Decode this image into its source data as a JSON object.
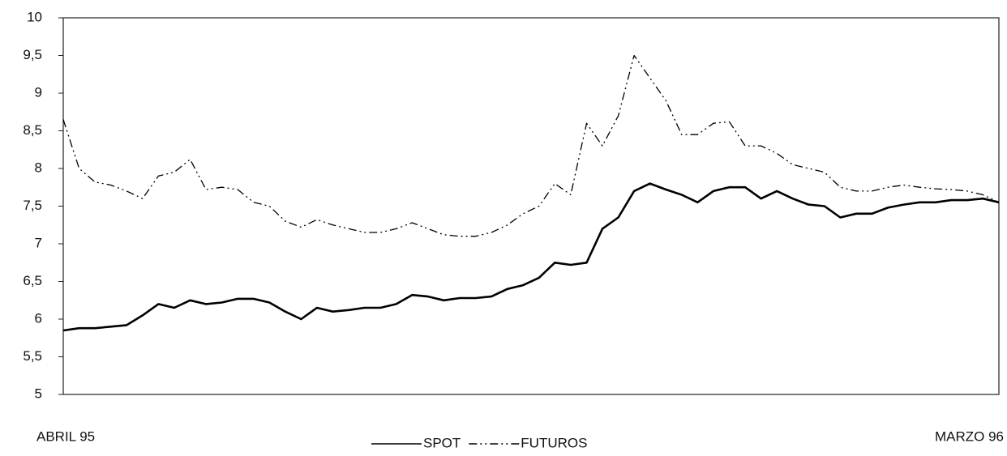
{
  "chart_data": {
    "type": "line",
    "categories": [
      "ABRIL 95",
      null,
      null,
      null,
      null,
      null,
      null,
      null,
      null,
      null,
      null,
      null,
      null,
      null,
      null,
      null,
      null,
      null,
      null,
      null,
      null,
      null,
      null,
      null,
      null,
      null,
      null,
      null,
      null,
      null,
      null,
      null,
      null,
      null,
      null,
      null,
      null,
      null,
      null,
      null,
      null,
      null,
      null,
      null,
      null,
      null,
      null,
      null,
      null,
      null,
      null,
      null,
      null,
      null,
      null,
      null,
      null,
      null,
      null,
      "MARZO 96"
    ],
    "series": [
      {
        "name": "SPOT",
        "color": "#000000",
        "style": "solid",
        "values": [
          5.85,
          5.88,
          5.88,
          5.9,
          5.92,
          6.05,
          6.2,
          6.15,
          6.25,
          6.2,
          6.22,
          6.27,
          6.27,
          6.22,
          6.1,
          6.0,
          6.15,
          6.1,
          6.12,
          6.15,
          6.15,
          6.2,
          6.32,
          6.3,
          6.25,
          6.28,
          6.28,
          6.3,
          6.4,
          6.45,
          6.55,
          6.75,
          6.72,
          6.75,
          7.2,
          7.35,
          7.7,
          7.8,
          7.72,
          7.65,
          7.55,
          7.7,
          7.75,
          7.75,
          7.6,
          7.7,
          7.6,
          7.52,
          7.5,
          7.35,
          7.4,
          7.4,
          7.48,
          7.52,
          7.55,
          7.55,
          7.58,
          7.58,
          7.6,
          7.55
        ]
      },
      {
        "name": "FUTUROS",
        "color": "#000000",
        "style": "dashdot",
        "values": [
          8.65,
          8.0,
          7.82,
          7.78,
          7.7,
          7.6,
          7.9,
          7.95,
          8.12,
          7.72,
          7.75,
          7.72,
          7.55,
          7.5,
          7.3,
          7.22,
          7.32,
          7.25,
          7.2,
          7.15,
          7.15,
          7.2,
          7.28,
          7.2,
          7.12,
          7.1,
          7.1,
          7.15,
          7.25,
          7.4,
          7.5,
          7.8,
          7.65,
          8.6,
          8.3,
          8.7,
          9.5,
          9.2,
          8.9,
          8.45,
          8.45,
          8.6,
          8.62,
          8.3,
          8.3,
          8.2,
          8.05,
          8.0,
          7.95,
          7.75,
          7.7,
          7.7,
          7.75,
          7.78,
          7.75,
          7.73,
          7.72,
          7.7,
          7.65,
          7.55
        ]
      }
    ],
    "ylim": [
      5,
      10
    ],
    "yticks": [
      5,
      {
        "value": 5.5,
        "label": "5,5"
      },
      6,
      {
        "value": 6.5,
        "label": "6,5"
      },
      7,
      {
        "value": 7.5,
        "label": "7,5"
      },
      8,
      {
        "value": 8.5,
        "label": "8,5"
      },
      9,
      {
        "value": 9.5,
        "label": "9,5"
      },
      10
    ],
    "grid": false,
    "legend": "bottom"
  }
}
